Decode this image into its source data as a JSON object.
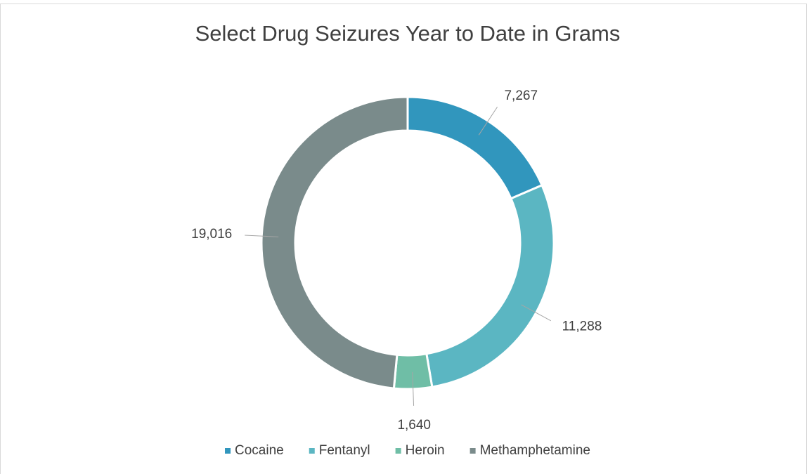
{
  "chart_data": {
    "type": "donut",
    "title": "Select Drug Seizures Year to Date in Grams",
    "categories": [
      "Cocaine",
      "Fentanyl",
      "Heroin",
      "Methamphetamine"
    ],
    "values": [
      7267,
      11288,
      1640,
      19016
    ],
    "value_labels": [
      "7,267",
      "11,288",
      "1,640",
      "19,016"
    ],
    "colors": [
      "#3196bd",
      "#5bb6c2",
      "#6fbea6",
      "#7a8b8b"
    ],
    "legend": "bottom"
  }
}
